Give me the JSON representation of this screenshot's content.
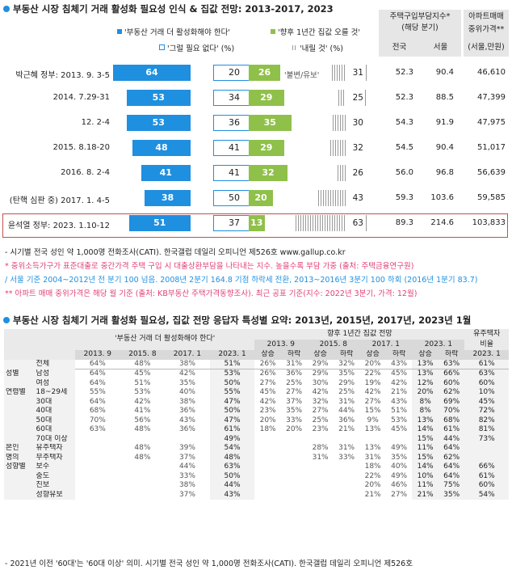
{
  "section1": {
    "title": "부동산 시장 침체기 거래 활성화 필요성 인식 & 집값 전망: 2013-2017, 2023",
    "legend": {
      "must_activate": "'부동산 거래 더 활성화해야 한다'",
      "not_needed": "'그럴 필요 없다' (%)",
      "price_up": "'향후 1년간 집값 오를 것'",
      "price_down": "'내릴 것' (%)",
      "same_label": "'불변/유보'"
    },
    "header": {
      "affordability": "주택구입부담지수*",
      "affordability_sub": "(해당 분기)",
      "nationwide": "전국",
      "seoul": "서울",
      "apt_price": "아파트매매",
      "apt_price2": "중위가격**",
      "apt_price3": "(서울,만원)"
    },
    "notes": [
      "- 시기별 전국 성인 약 1,000명 전화조사(CATI). 한국갤럽 데일리 오피니언 제526호 www.gallup.co.kr",
      "* 중위소득가구가 표준대출로 중간가격 주택 구입 시 대출상환부담을 나타내는 지수. 높을수록 부담 가중 (출처: 주택금융연구원)",
      "/ 서울 기준 2004~2012년 전 분기 100 넘음. 2008년 2분기 164.8 기점 하락세 전환, 2013~2016년 3분기 100 하회 (2016년 1분기 83.7)",
      "** 아파트 매매 중위가격은 해당 월 기준 (출처: KB부동산 주택가격동향조사). 최근 공표 기준(지수: 2022년 3분기, 가격: 12월)"
    ]
  },
  "chart_data": {
    "type": "bar",
    "categories": [
      "박근혜 정부: 2013. 9. 3-5",
      "2014. 7.29-31",
      "12. 2-4",
      "2015. 8.18-20",
      "2016. 8. 2-4",
      "(탄핵 심판 중) 2017. 1. 4-5",
      "윤석열 정부: 2023. 1.10-12"
    ],
    "series": [
      {
        "name": "'부동산 거래 더 활성화해야 한다'",
        "values": [
          64,
          53,
          53,
          48,
          41,
          38,
          51
        ]
      },
      {
        "name": "'그럴 필요 없다' (%)",
        "values": [
          20,
          34,
          36,
          41,
          41,
          50,
          37
        ]
      },
      {
        "name": "'향후 1년간 집값 오를 것'",
        "values": [
          26,
          29,
          35,
          29,
          32,
          20,
          13
        ]
      },
      {
        "name": "'내릴 것' (%)",
        "values": [
          31,
          25,
          30,
          32,
          26,
          43,
          63
        ]
      }
    ],
    "table": {
      "nationwide": [
        "52.3",
        "52.3",
        "54.3",
        "54.5",
        "56.0",
        "59.3",
        "89.3"
      ],
      "seoul": [
        "90.4",
        "88.5",
        "91.9",
        "90.4",
        "96.8",
        "103.6",
        "214.6"
      ],
      "apt_price": [
        "46,610",
        "47,399",
        "47,975",
        "51,017",
        "56,639",
        "59,585",
        "103,833"
      ]
    },
    "colors": {
      "blue": "#1f8fe0",
      "green": "#8fc04a",
      "highlight_border": "#c0504d",
      "pink": "#e0407a"
    }
  },
  "section2": {
    "title": "부동산 시장 침체기 거래 활성화 필요성, 집값 전망 응답자 특성별 요약: 2013년, 2015년, 2017년, 2023년 1월",
    "h_activate": "'부동산 거래 더 활성화해야 한다'",
    "h_outlook": "향후 1년간 집값 전망",
    "h_own1": "유주택자",
    "h_own2": "비율",
    "years_a": [
      "2013. 9",
      "2015. 8",
      "2017. 1",
      "2023. 1"
    ],
    "years_b": [
      "2013. 9",
      "2015. 8",
      "2017. 1",
      "2023. 1"
    ],
    "own_year": "2023. 1",
    "updown": [
      "상승",
      "하락",
      "상승",
      "하락",
      "상승",
      "하락",
      "상승",
      "하락"
    ],
    "rows": [
      [
        "",
        "전체",
        "64%",
        "48%",
        "38%",
        "51%",
        "26%",
        "31%",
        "29%",
        "32%",
        "20%",
        "43%",
        "13%",
        "63%",
        "61%"
      ],
      [
        "성별",
        "남성",
        "64%",
        "45%",
        "42%",
        "53%",
        "26%",
        "36%",
        "29%",
        "35%",
        "22%",
        "45%",
        "13%",
        "66%",
        "63%"
      ],
      [
        "",
        "여성",
        "64%",
        "51%",
        "35%",
        "50%",
        "27%",
        "25%",
        "30%",
        "29%",
        "19%",
        "42%",
        "12%",
        "60%",
        "60%"
      ],
      [
        "연령별",
        "18~29세",
        "55%",
        "53%",
        "40%",
        "55%",
        "45%",
        "27%",
        "42%",
        "25%",
        "42%",
        "21%",
        "20%",
        "62%",
        "10%"
      ],
      [
        "",
        "30대",
        "64%",
        "42%",
        "38%",
        "47%",
        "42%",
        "37%",
        "32%",
        "31%",
        "27%",
        "43%",
        "8%",
        "69%",
        "45%"
      ],
      [
        "",
        "40대",
        "68%",
        "41%",
        "36%",
        "50%",
        "23%",
        "35%",
        "27%",
        "44%",
        "15%",
        "51%",
        "8%",
        "70%",
        "72%"
      ],
      [
        "",
        "50대",
        "70%",
        "56%",
        "43%",
        "47%",
        "20%",
        "33%",
        "25%",
        "36%",
        "9%",
        "53%",
        "13%",
        "68%",
        "82%"
      ],
      [
        "",
        "60대",
        "63%",
        "48%",
        "36%",
        "61%",
        "18%",
        "20%",
        "23%",
        "21%",
        "13%",
        "45%",
        "14%",
        "61%",
        "81%"
      ],
      [
        "",
        "70대 이상",
        "",
        "",
        "",
        "49%",
        "",
        "",
        "",
        "",
        "",
        "",
        "15%",
        "44%",
        "73%"
      ],
      [
        "본인",
        "유주택자",
        "",
        "48%",
        "39%",
        "54%",
        "",
        "",
        "28%",
        "31%",
        "13%",
        "49%",
        "11%",
        "64%",
        ""
      ],
      [
        "명의",
        "무주택자",
        "",
        "48%",
        "37%",
        "48%",
        "",
        "",
        "31%",
        "33%",
        "31%",
        "35%",
        "15%",
        "62%",
        ""
      ],
      [
        "성향별",
        "보수",
        "",
        "",
        "44%",
        "63%",
        "",
        "",
        "",
        "",
        "18%",
        "40%",
        "14%",
        "64%",
        "66%"
      ],
      [
        "",
        "중도",
        "",
        "",
        "33%",
        "50%",
        "",
        "",
        "",
        "",
        "22%",
        "49%",
        "10%",
        "64%",
        "61%"
      ],
      [
        "",
        "진보",
        "",
        "",
        "38%",
        "44%",
        "",
        "",
        "",
        "",
        "20%",
        "46%",
        "11%",
        "75%",
        "60%"
      ],
      [
        "",
        "성향유보",
        "",
        "",
        "37%",
        "43%",
        "",
        "",
        "",
        "",
        "21%",
        "27%",
        "21%",
        "35%",
        "54%"
      ]
    ],
    "footnote": "- 2021년 이전 '60대'는 '60대 이상' 의미. 시기별 전국 성인 약 1,000명 전화조사(CATI). 한국갤럽 데일리 오피니언 제526호"
  }
}
